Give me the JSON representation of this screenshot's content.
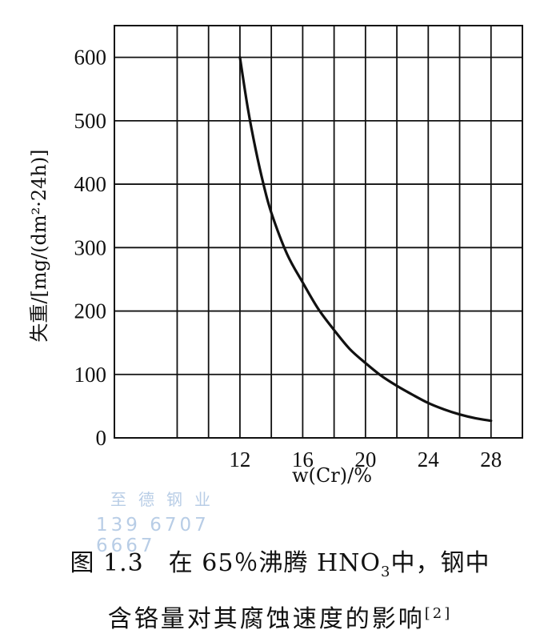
{
  "chart_data": {
    "type": "line",
    "xlabel": "w(Cr)/%",
    "ylabel": "失重/[mg/(dm²·24h)]",
    "x_ticks": [
      12,
      16,
      20,
      24,
      28
    ],
    "y_ticks": [
      0,
      100,
      200,
      300,
      400,
      500,
      600
    ],
    "xlim": [
      4,
      30
    ],
    "ylim": [
      0,
      650
    ],
    "grid": true,
    "series": [
      {
        "x": [
          12,
          12.5,
          13,
          13.5,
          14,
          15,
          16,
          17,
          18,
          19,
          20,
          21,
          22,
          23,
          24,
          25,
          26,
          27,
          28
        ],
        "y": [
          600,
          520,
          455,
          400,
          355,
          290,
          245,
          203,
          170,
          140,
          118,
          98,
          82,
          68,
          55,
          45,
          37,
          31,
          27
        ]
      }
    ]
  },
  "watermark": {
    "line1": "至德钢业",
    "line2": "139 6707 6667"
  },
  "caption": {
    "line1_a": "图 1.3　在 65％沸腾 HNO",
    "line1_sub": "3",
    "line1_b": "中，钢中",
    "line2_a": "含铬量对其腐蚀速度的影响",
    "line2_ref": "[2]"
  }
}
